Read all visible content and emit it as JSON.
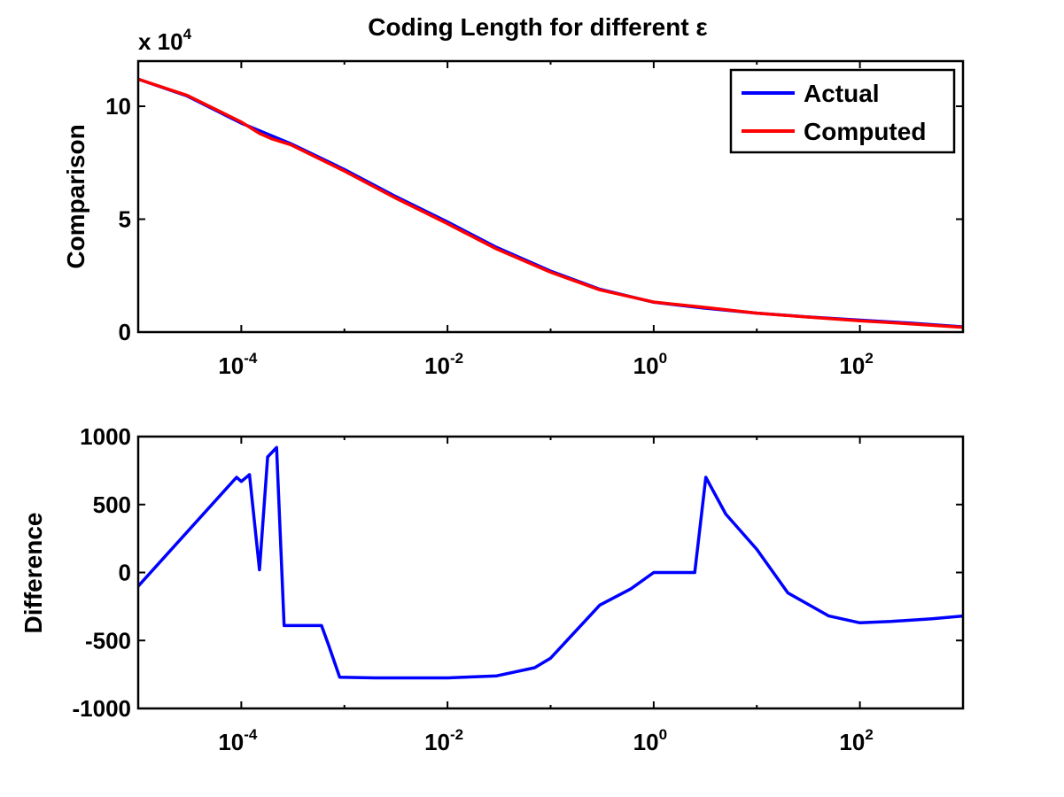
{
  "figure": {
    "title": "Coding Length for different ε"
  },
  "colors": {
    "actual": "#0000ff",
    "computed": "#ff0000",
    "axes": "#000000",
    "background": "#ffffff"
  },
  "chart_data": [
    {
      "type": "line",
      "title": "Coding Length for different ε",
      "xlabel": "",
      "ylabel": "Comparison",
      "xscale": "log",
      "xlim": [
        1e-05,
        1000
      ],
      "ylim": [
        0,
        120000
      ],
      "y_multiplier_label": {
        "base": "x 10",
        "exp": "4"
      },
      "x_tick_values": [
        0.0001,
        0.01,
        1,
        100
      ],
      "x_ticks": [
        {
          "base": "10",
          "exp": "-4"
        },
        {
          "base": "10",
          "exp": "-2"
        },
        {
          "base": "10",
          "exp": "0"
        },
        {
          "base": "10",
          "exp": "2"
        }
      ],
      "y_tick_values": [
        0,
        50000,
        100000
      ],
      "y_ticks": [
        "0",
        "5",
        "10"
      ],
      "grid": false,
      "legend": "top-right",
      "legend_entries": [
        "Actual",
        "Computed"
      ],
      "series": [
        {
          "name": "Actual",
          "x": [
            1e-05,
            3e-05,
            0.0001,
            0.0003,
            0.001,
            0.003,
            0.01,
            0.03,
            0.1,
            0.3,
            1,
            3,
            10,
            30,
            100,
            300,
            1000
          ],
          "y": [
            112000,
            104500,
            92500,
            83500,
            72000,
            60500,
            48800,
            37500,
            27000,
            19000,
            13200,
            10700,
            8400,
            6800,
            5300,
            4000,
            2300
          ]
        },
        {
          "name": "Computed",
          "x": [
            1e-05,
            3e-05,
            0.0001,
            0.00015,
            0.0002,
            0.0003,
            0.001,
            0.003,
            0.01,
            0.03,
            0.1,
            0.3,
            1,
            3,
            10,
            30,
            100,
            300,
            1000
          ],
          "y": [
            112000,
            104800,
            93000,
            88000,
            85500,
            83000,
            71300,
            59800,
            48000,
            36800,
            26500,
            18700,
            13300,
            11000,
            8400,
            6700,
            5000,
            3700,
            2100
          ]
        }
      ]
    },
    {
      "type": "line",
      "xlabel": "",
      "ylabel": "Difference",
      "xscale": "log",
      "xlim": [
        1e-05,
        1000
      ],
      "ylim": [
        -1000,
        1000
      ],
      "x_tick_values": [
        0.0001,
        0.01,
        1,
        100
      ],
      "x_ticks": [
        {
          "base": "10",
          "exp": "-4"
        },
        {
          "base": "10",
          "exp": "-2"
        },
        {
          "base": "10",
          "exp": "0"
        },
        {
          "base": "10",
          "exp": "2"
        }
      ],
      "y_tick_values": [
        -1000,
        -500,
        0,
        500,
        1000
      ],
      "y_ticks": [
        "-1000",
        "-500",
        "0",
        "500",
        "1000"
      ],
      "grid": false,
      "series": [
        {
          "x": [
            1e-05,
            9e-05,
            0.0001,
            0.00012,
            0.00015,
            0.00018,
            0.00022,
            0.00026,
            0.0006,
            0.0007,
            0.0009,
            0.002,
            0.01,
            0.03,
            0.07,
            0.1,
            0.3,
            0.6,
            1,
            2.5,
            3.2,
            5,
            10,
            20,
            50,
            100,
            200,
            500,
            1000
          ],
          "y": [
            -100,
            700,
            670,
            720,
            20,
            850,
            920,
            -390,
            -390,
            -530,
            -770,
            -775,
            -775,
            -760,
            -700,
            -630,
            -240,
            -120,
            0,
            0,
            700,
            430,
            170,
            -150,
            -320,
            -370,
            -360,
            -340,
            -320
          ]
        }
      ]
    }
  ]
}
